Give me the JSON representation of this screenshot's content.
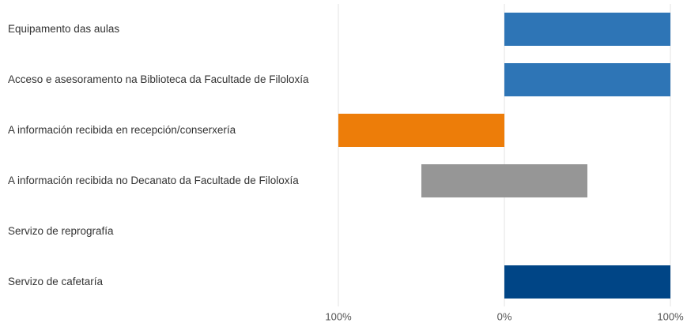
{
  "chart_data": {
    "type": "bar",
    "categories": [
      "Equipamento das aulas",
      "Acceso e asesoramento na Biblioteca da Facultade de Filoloxía",
      "A información recibida en recepción/conserxería",
      "A información recibida no Decanato da Facultade de Filoloxía",
      "Servizo de reprografía",
      "Servizo de cafetaría"
    ],
    "colors": [
      "#2e75b6",
      "#2e75b6",
      "#ed7d09",
      "#969696",
      null,
      "#004586"
    ],
    "series": [
      {
        "values": [
          null,
          null,
          -100,
          -50,
          null,
          null
        ]
      },
      {
        "values": [
          100,
          100,
          null,
          50,
          null,
          100
        ]
      }
    ],
    "xlim": [
      -100,
      100
    ],
    "xticks": [
      {
        "value": -100,
        "label": "100%"
      },
      {
        "value": 0,
        "label": "0%"
      },
      {
        "value": 100,
        "label": "100%"
      }
    ],
    "grid": true
  }
}
